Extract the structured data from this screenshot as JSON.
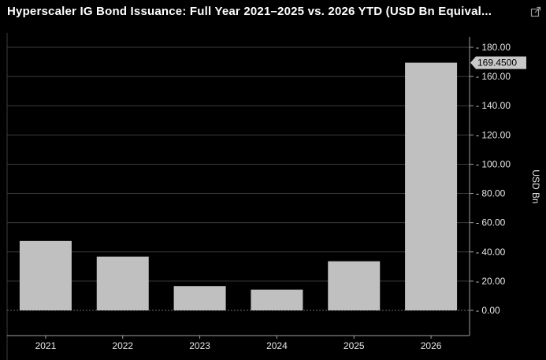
{
  "title": "Hyperscaler IG Bond Issuance: Full Year 2021–2025 vs. 2026 YTD (USD Bn Equival...",
  "chart_data": {
    "type": "bar",
    "title": "Hyperscaler IG Bond Issuance: Full Year 2021–2025 vs. 2026 YTD (USD Bn Equival...",
    "categories": [
      "2021",
      "2022",
      "2023",
      "2024",
      "2025",
      "2026"
    ],
    "values": [
      47.5,
      36.8,
      16.6,
      14.2,
      33.6,
      169.45
    ],
    "ylabel": "USD Bn",
    "xlabel": "",
    "ylim": [
      0,
      180
    ],
    "yticks": [
      "0.00",
      "20.00",
      "40.00",
      "60.00",
      "80.00",
      "100.00",
      "120.00",
      "140.00",
      "160.00",
      "180.00"
    ],
    "last_value_label": "169.4500",
    "grid": true,
    "colors": {
      "bar": "#c0c0c0",
      "background": "#000000",
      "grid": "#3c3c3c",
      "text": "#e6e6e6",
      "tag_bg": "#c8c8c8"
    }
  }
}
